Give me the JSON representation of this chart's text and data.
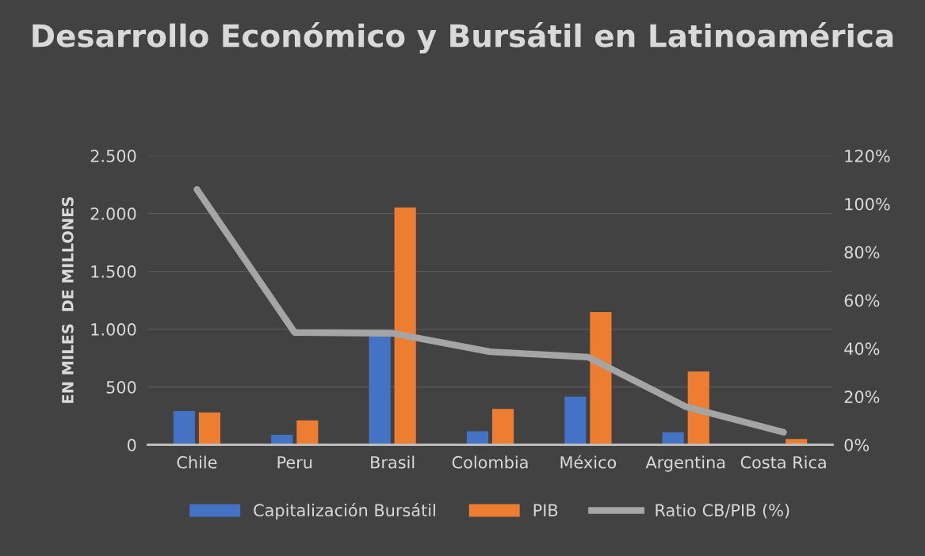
{
  "chart_data": {
    "type": "bar",
    "title": "Desarrollo Económico y Bursátil en Latinoamérica",
    "ylabel": "EN MILES  DE MILLONES",
    "categories": [
      "Chile",
      "Peru",
      "Brasil",
      "Colombia",
      "México",
      "Argentina",
      "Costa Rica"
    ],
    "series": [
      {
        "name": "Capitalización Bursátil",
        "color": "#4472c4",
        "values": [
          291,
          87,
          950,
          117,
          417,
          109,
          null
        ]
      },
      {
        "name": "PIB",
        "color": "#ed7d31",
        "values": [
          279,
          211,
          2052,
          310,
          1147,
          635,
          51
        ]
      },
      {
        "name": "Ratio CB/PIB (%)",
        "type": "line",
        "axis": "y2",
        "color": "#a5a5a5",
        "marker": "none",
        "values": [
          106,
          46.6,
          46.3,
          38.6,
          36.4,
          15.8,
          5.2
        ]
      }
    ],
    "ylim": [
      0,
      2500
    ],
    "yticks": [
      {
        "value": 0,
        "label": "0"
      },
      {
        "value": 500,
        "label": "500"
      },
      {
        "value": 1000,
        "label": "1.000"
      },
      {
        "value": 1500,
        "label": "1.500"
      },
      {
        "value": 2000,
        "label": "2.000"
      },
      {
        "value": 2500,
        "label": "2.500"
      }
    ],
    "y2lim": [
      0,
      120
    ],
    "y2ticks": [
      {
        "value": 0,
        "label": "0%"
      },
      {
        "value": 20,
        "label": "20%"
      },
      {
        "value": 40,
        "label": "40%"
      },
      {
        "value": 60,
        "label": "60%"
      },
      {
        "value": 80,
        "label": "80%"
      },
      {
        "value": 100,
        "label": "100%"
      },
      {
        "value": 120,
        "label": "120%"
      }
    ],
    "grid": "y",
    "legend": "bottom"
  }
}
